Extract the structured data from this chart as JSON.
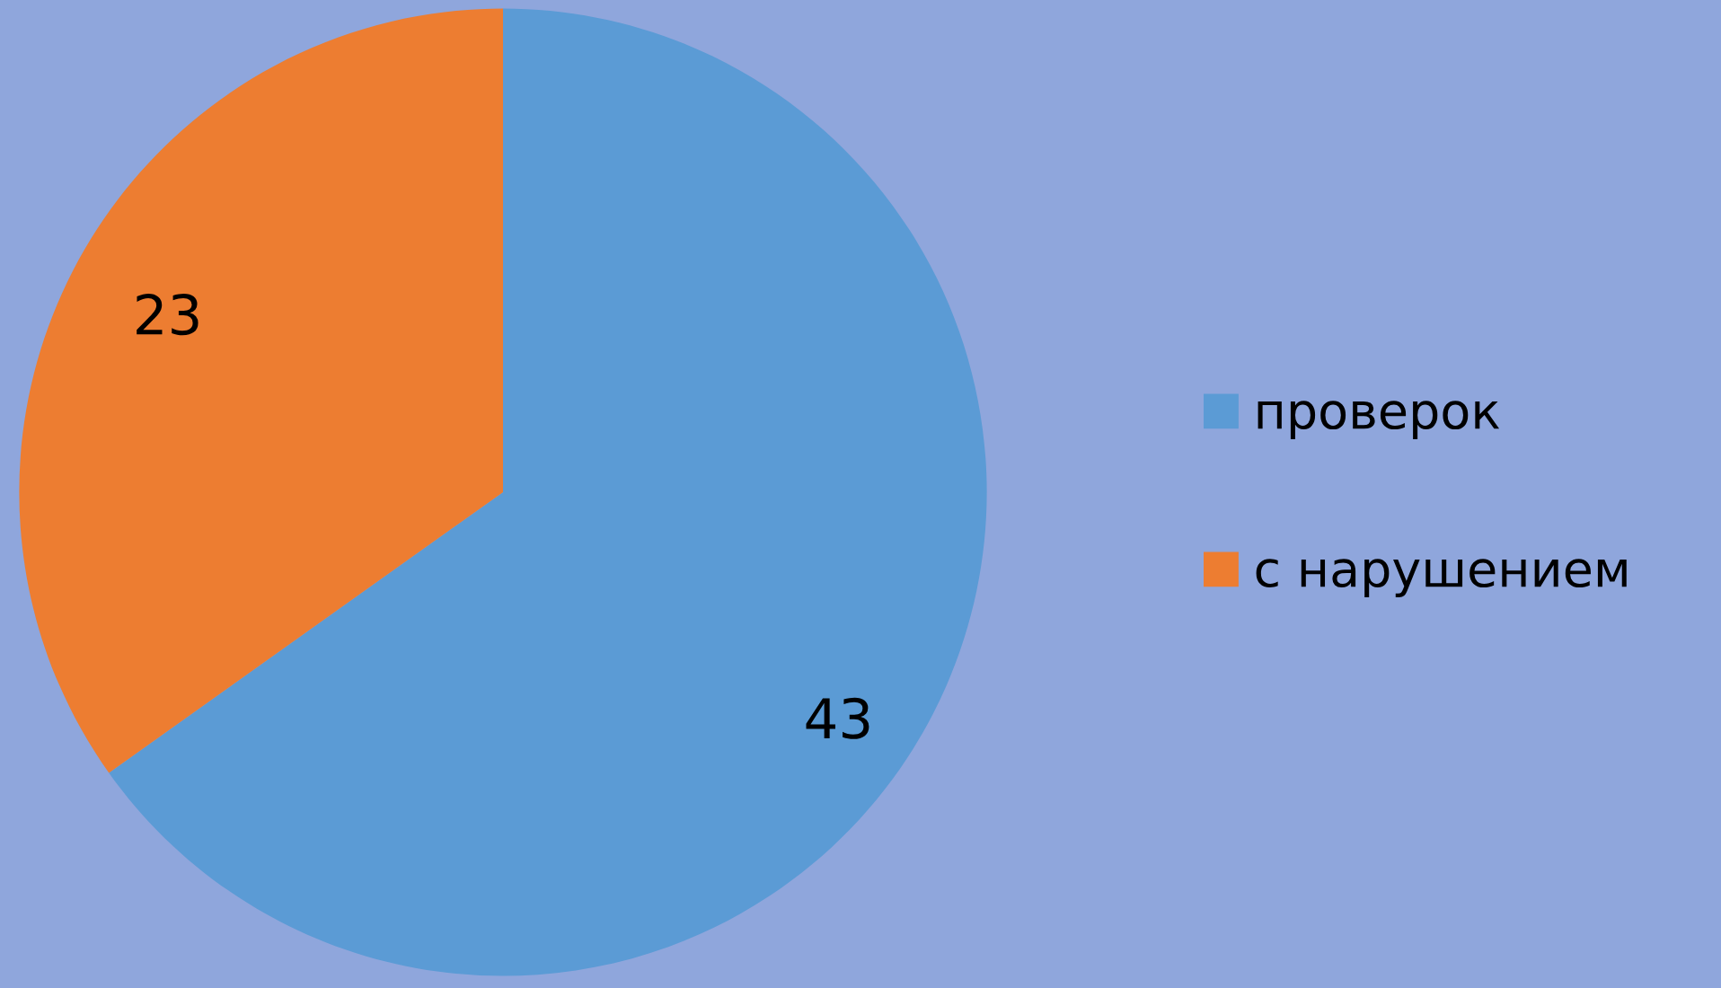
{
  "chart_data": {
    "type": "pie",
    "categories": [
      "проверок",
      "с нарушением"
    ],
    "values": [
      43,
      23
    ],
    "colors": [
      "#5b9bd5",
      "#ed7d31"
    ],
    "data_labels": true,
    "legend": "right"
  }
}
